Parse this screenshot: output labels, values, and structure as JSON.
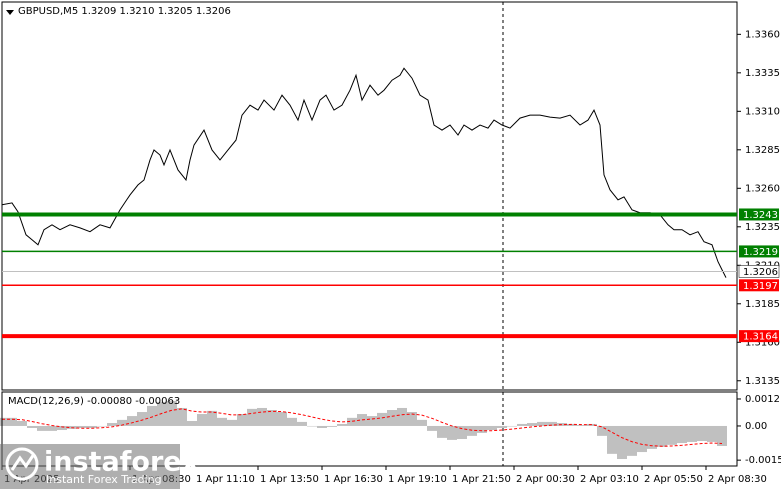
{
  "chart_data": [
    {
      "type": "line",
      "title": "GBPUSD,M5  1.3209 1.3210 1.3205 1.3206",
      "color": "#000000",
      "grid": false,
      "x": [
        0,
        5,
        8,
        12,
        15,
        18,
        21,
        25,
        29,
        34,
        39,
        44,
        49,
        54,
        59,
        64,
        68,
        71,
        74,
        76,
        79,
        81,
        84,
        88,
        92,
        94,
        96,
        101,
        105,
        109,
        113,
        117,
        120,
        124,
        128,
        131,
        136,
        140,
        144,
        148,
        151,
        155,
        159,
        162,
        166,
        170,
        174,
        177,
        180,
        184,
        188,
        191,
        195,
        199,
        201,
        205,
        209,
        213,
        216,
        220,
        224,
        228,
        231,
        235,
        239,
        243,
        246,
        250,
        254,
        259,
        264,
        269,
        274,
        279,
        284,
        289,
        293,
        296,
        299,
        301,
        304,
        308,
        311,
        315,
        319,
        324,
        329,
        333,
        336,
        340,
        344,
        348,
        351,
        355,
        358,
        360,
        362
      ],
      "values": [
        1.32493,
        1.32505,
        1.32447,
        1.32298,
        1.32266,
        1.32233,
        1.32331,
        1.32363,
        1.32331,
        1.32363,
        1.32343,
        1.32318,
        1.32363,
        1.32343,
        1.3246,
        1.32557,
        1.32622,
        1.32654,
        1.32784,
        1.32849,
        1.32816,
        1.32752,
        1.32849,
        1.32719,
        1.32654,
        1.32784,
        1.32881,
        1.32978,
        1.32849,
        1.32784,
        1.32849,
        1.32913,
        1.33075,
        1.3314,
        1.33108,
        1.33173,
        1.33108,
        1.33205,
        1.3314,
        1.33043,
        1.33173,
        1.33043,
        1.33173,
        1.33205,
        1.33108,
        1.3314,
        1.33237,
        1.33334,
        1.33173,
        1.3327,
        1.33205,
        1.33237,
        1.33302,
        1.33334,
        1.3338,
        1.33315,
        1.33205,
        1.33173,
        1.33011,
        1.32978,
        1.33011,
        1.32946,
        1.33011,
        1.32978,
        1.33011,
        1.32991,
        1.33043,
        1.33011,
        1.32991,
        1.33056,
        1.33075,
        1.33075,
        1.33062,
        1.33056,
        1.33075,
        1.33011,
        1.33043,
        1.33108,
        1.33011,
        1.32687,
        1.3259,
        1.32525,
        1.32544,
        1.3246,
        1.32441,
        1.32441,
        1.32428,
        1.32363,
        1.32331,
        1.32331,
        1.32298,
        1.32318,
        1.32253,
        1.32233,
        1.32123,
        1.32071,
        1.3202
      ],
      "xlim": [
        0,
        367.5
      ],
      "xticks": [
        {
          "value": 0,
          "label": "1 Apr 2025"
        },
        {
          "value": 64,
          "label": "1 Apr 08:30"
        },
        {
          "value": 96,
          "label": "1 Apr 11:10"
        },
        {
          "value": 128,
          "label": "1 Apr 13:50"
        },
        {
          "value": 160,
          "label": "1 Apr 16:30"
        },
        {
          "value": 192,
          "label": "1 Apr 19:10"
        },
        {
          "value": 224,
          "label": "1 Apr 21:50"
        },
        {
          "value": 256,
          "label": "2 Apr 00:30"
        },
        {
          "value": 288,
          "label": "2 Apr 03:10"
        },
        {
          "value": 320,
          "label": "2 Apr 05:50"
        },
        {
          "value": 352,
          "label": "2 Apr 08:30"
        }
      ],
      "ylim": [
        1.3129,
        1.3381
      ],
      "yticks": [
        {
          "value": 1.336,
          "label": "1.3360"
        },
        1.3335,
        {
          "value": 1.331,
          "label": "1.3310"
        },
        1.3285,
        {
          "value": 1.326,
          "label": "1.3260"
        },
        1.3235,
        {
          "value": 1.321,
          "label": "1.3210"
        },
        1.3185,
        {
          "value": 1.316,
          "label": "1.3160"
        },
        1.3135
      ],
      "levels": [
        {
          "value": 1.3243,
          "color": "#008000",
          "style": "thick"
        },
        {
          "value": 1.3219,
          "color": "#008000",
          "style": "thin"
        },
        {
          "value": 1.3197,
          "color": "#ff0000",
          "style": "thin"
        },
        {
          "value": 1.3164,
          "color": "#ff0000",
          "style": "thick"
        }
      ],
      "last_price": 1.3206
    },
    {
      "type": "combo",
      "title": "MACD(12,26,9) -0.00080 -0.00063",
      "x": [
        0,
        5,
        10,
        15,
        20,
        25,
        30,
        35,
        40,
        45,
        50,
        55,
        60,
        65,
        70,
        75,
        80,
        85,
        90,
        95,
        100,
        105,
        110,
        115,
        120,
        125,
        130,
        135,
        140,
        145,
        150,
        155,
        160,
        165,
        170,
        175,
        180,
        185,
        190,
        195,
        200,
        205,
        210,
        215,
        220,
        225,
        230,
        235,
        240,
        245,
        250,
        255,
        260,
        265,
        270,
        275,
        280,
        285,
        290,
        295,
        300,
        305,
        310,
        315,
        320,
        325,
        330,
        335,
        340,
        345,
        350,
        355,
        360
      ],
      "xlim": [
        0,
        367.5
      ],
      "ylim": [
        -0.00178,
        0.00151
      ],
      "yticks": [
        0.0012,
        {
          "value": 0,
          "label": "0.00"
        },
        -0.00152
      ],
      "series": [
        {
          "type": "bar",
          "color": "#c0c0c0",
          "values": [
            0.00036,
            0.00036,
            0.00022,
            -9e-05,
            -0.00022,
            -0.00022,
            -0.00018,
            -0.00013,
            -9e-05,
            -9e-05,
            0,
            0.00013,
            0.00027,
            0.00044,
            0.00062,
            0.00089,
            0.00107,
            0.00111,
            0.0008,
            0.00022,
            0.00053,
            0.00067,
            0.00036,
            0.00027,
            0.00053,
            0.00076,
            0.0008,
            0.00071,
            0.00062,
            0.00036,
            0.00018,
            0,
            -9e-05,
            -4e-05,
            9e-05,
            0.00036,
            0.00053,
            0.00044,
            0.00058,
            0.00071,
            0.0008,
            0.00062,
            0.00027,
            -0.00022,
            -0.00053,
            -0.00062,
            -0.00058,
            -0.00044,
            -0.00031,
            -0.00018,
            -9e-05,
            0,
            9e-05,
            0.00013,
            0.00018,
            0.00018,
            0.00013,
            9e-05,
            4e-05,
            9e-05,
            -0.00044,
            -0.00124,
            -0.00147,
            -0.00133,
            -0.00116,
            -0.00102,
            -0.00093,
            -0.00084,
            -0.00076,
            -0.00071,
            -0.00067,
            -0.00071,
            -0.00089
          ]
        },
        {
          "type": "line",
          "color": "#ff0000",
          "style": "dashed",
          "values": [
            0.0003,
            0.0003,
            0.00028,
            0.0002,
            0.0001,
            2e-05,
            -4e-05,
            -8e-05,
            -0.0001,
            -0.0001,
            -8e-05,
            -4e-05,
            4e-05,
            0.00014,
            0.00026,
            0.0004,
            0.00056,
            0.0007,
            0.00076,
            0.00066,
            0.00062,
            0.00062,
            0.00056,
            0.00049,
            0.0005,
            0.00056,
            0.00062,
            0.00065,
            0.00064,
            0.00058,
            0.0005,
            0.0004,
            0.0003,
            0.00022,
            0.00018,
            0.00021,
            0.00027,
            0.00031,
            0.00036,
            0.00043,
            0.0005,
            0.00053,
            0.00048,
            0.00034,
            0.00016,
            0,
            -0.00012,
            -0.00019,
            -0.00021,
            -0.00021,
            -0.00018,
            -0.00014,
            -9e-05,
            -4e-05,
            0,
            4e-05,
            6e-05,
            7e-05,
            6e-05,
            6e-05,
            -4e-05,
            -0.00028,
            -0.00052,
            -0.0007,
            -0.00082,
            -0.00088,
            -0.0009,
            -0.00089,
            -0.00086,
            -0.00082,
            -0.00078,
            -0.00076,
            -0.00078
          ]
        }
      ]
    }
  ],
  "watermark": {
    "brand": "instaforex",
    "tagline": "Instant Forex Trading"
  }
}
